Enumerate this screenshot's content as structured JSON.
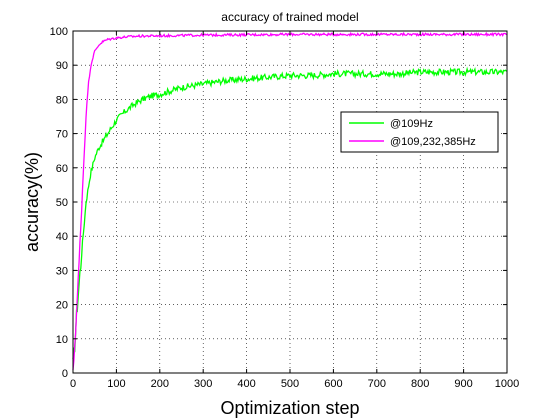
{
  "chart_data": {
    "type": "line",
    "title": "accuracy of trained model",
    "xlabel": "Optimization step",
    "ylabel": "accuracy(%)",
    "xlim": [
      0,
      1000
    ],
    "ylim": [
      0,
      100
    ],
    "xticks": [
      0,
      100,
      200,
      300,
      400,
      500,
      600,
      700,
      800,
      900,
      1000
    ],
    "yticks": [
      0,
      10,
      20,
      30,
      40,
      50,
      60,
      70,
      80,
      90,
      100
    ],
    "grid": true,
    "legend_position": "upper-right, below the curves",
    "series": [
      {
        "name": "@109Hz",
        "color": "#00ff00",
        "x": [
          0,
          5,
          10,
          20,
          30,
          40,
          50,
          60,
          70,
          80,
          90,
          100,
          120,
          140,
          160,
          180,
          200,
          225,
          250,
          275,
          300,
          350,
          400,
          450,
          500,
          550,
          600,
          650,
          700,
          750,
          800,
          850,
          900,
          950,
          1000
        ],
        "y": [
          2,
          10,
          20,
          35,
          50,
          58,
          63,
          66,
          68,
          70,
          72,
          74,
          76.5,
          78.5,
          80,
          81,
          81.5,
          82.5,
          83.5,
          84,
          84.5,
          85.5,
          86,
          86.5,
          87,
          87,
          87.5,
          87.5,
          87.5,
          87.5,
          88,
          88,
          88,
          88,
          88
        ]
      },
      {
        "name": "@109,232,385Hz",
        "color": "#ff00ff",
        "x": [
          0,
          5,
          10,
          15,
          20,
          25,
          30,
          35,
          40,
          45,
          50,
          60,
          70,
          80,
          100,
          125,
          150,
          200,
          250,
          300,
          400,
          500,
          600,
          700,
          800,
          900,
          1000
        ],
        "y": [
          0,
          10,
          22,
          35,
          48,
          62,
          75,
          84,
          89,
          92,
          94,
          96,
          97,
          97.5,
          98,
          98.3,
          98.5,
          98.6,
          98.7,
          98.8,
          98.9,
          99,
          99,
          99,
          99,
          99,
          99
        ]
      }
    ]
  }
}
